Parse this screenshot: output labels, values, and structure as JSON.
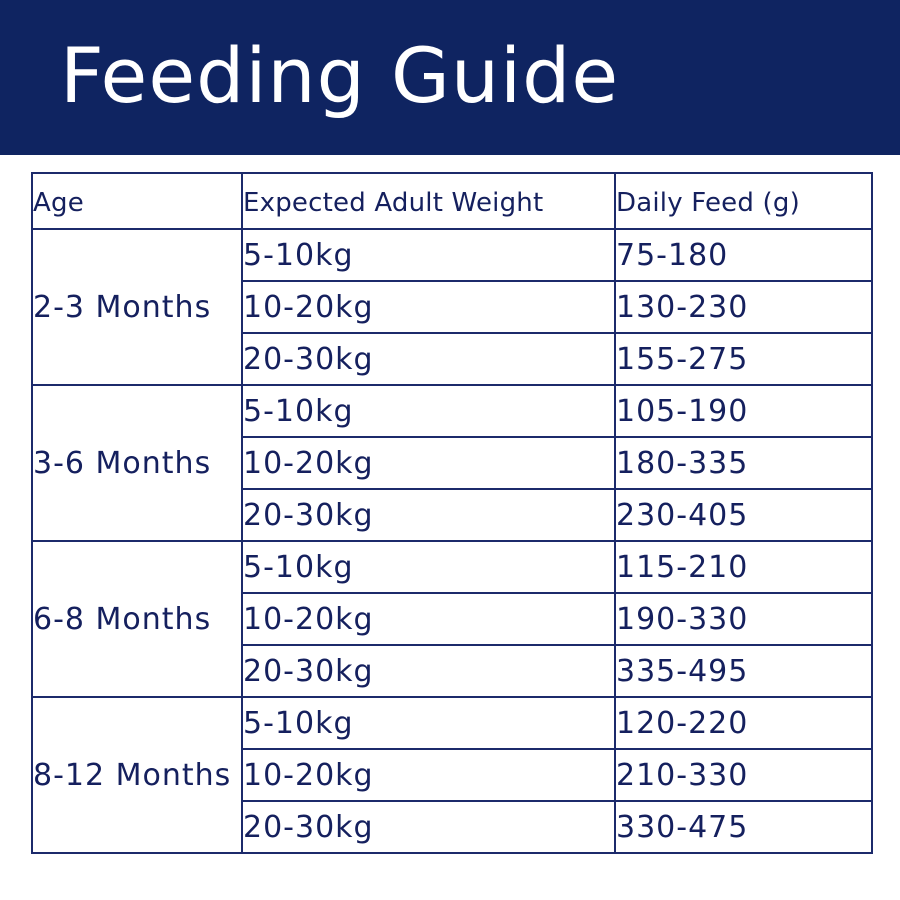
{
  "header": {
    "title": "Feeding Guide",
    "background_color": "#0f2461",
    "text_color": "#ffffff"
  },
  "table": {
    "line_color": "#1c2a6b",
    "text_color": "#15205e",
    "columns": [
      "Age",
      "Expected Adult Weight",
      "Daily Feed (g)"
    ],
    "groups": [
      {
        "age": "2-3 Months",
        "rows": [
          {
            "weight": "5-10kg",
            "feed": "75-180"
          },
          {
            "weight": "10-20kg",
            "feed": "130-230"
          },
          {
            "weight": "20-30kg",
            "feed": "155-275"
          }
        ]
      },
      {
        "age": "3-6 Months",
        "rows": [
          {
            "weight": "5-10kg",
            "feed": "105-190"
          },
          {
            "weight": "10-20kg",
            "feed": "180-335"
          },
          {
            "weight": "20-30kg",
            "feed": "230-405"
          }
        ]
      },
      {
        "age": "6-8 Months",
        "rows": [
          {
            "weight": "5-10kg",
            "feed": "115-210"
          },
          {
            "weight": "10-20kg",
            "feed": "190-330"
          },
          {
            "weight": "20-30kg",
            "feed": "335-495"
          }
        ]
      },
      {
        "age": "8-12 Months",
        "rows": [
          {
            "weight": "5-10kg",
            "feed": "120-220"
          },
          {
            "weight": "10-20kg",
            "feed": "210-330"
          },
          {
            "weight": "20-30kg",
            "feed": "330-475"
          }
        ]
      }
    ]
  }
}
